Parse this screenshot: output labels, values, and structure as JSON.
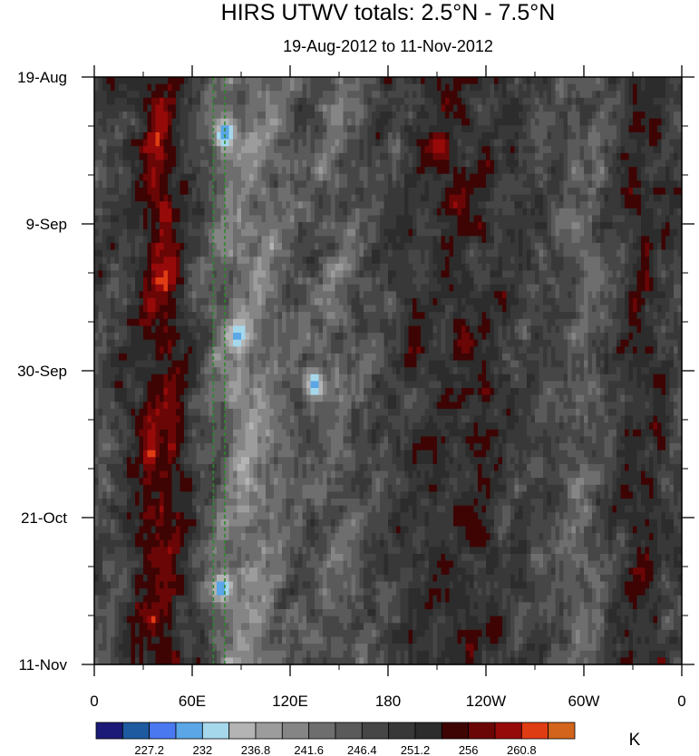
{
  "chart_data": {
    "type": "heatmap",
    "title": "HIRS UTWV totals: 2.5°N - 7.5°N",
    "subtitle": "19-Aug-2012 to 11-Nov-2012",
    "x_tick_labels": [
      "0",
      "60E",
      "120E",
      "180",
      "120W",
      "60W",
      "0"
    ],
    "x_ticks_deg_east": [
      0,
      60,
      120,
      180,
      240,
      300,
      360
    ],
    "xlim_deg_east": [
      0,
      360
    ],
    "y_tick_labels": [
      "19-Aug",
      "9-Sep",
      "30-Sep",
      "21-Oct",
      "11-Nov"
    ],
    "y_ticks": [
      "2012-08-19",
      "2012-09-09",
      "2012-09-30",
      "2012-10-21",
      "2012-11-11"
    ],
    "ylim": [
      "2012-08-19",
      "2012-11-11"
    ],
    "y_axis_reversed": true,
    "units": "K",
    "colorbar": {
      "levels": [
        224.8,
        227.2,
        229.6,
        232,
        234.4,
        236.8,
        239.2,
        241.6,
        244,
        246.4,
        248.8,
        251.2,
        253.6,
        256,
        258.4,
        260.8,
        263.2
      ],
      "labels": [
        "227.2",
        "232",
        "236.8",
        "241.6",
        "246.4",
        "251.2",
        "256",
        "260.8"
      ],
      "colors": [
        "#1c1a78",
        "#1e5aa0",
        "#4a78f0",
        "#5aa6e6",
        "#a6d8ec",
        "#b4b4b4",
        "#9c9c9c",
        "#858585",
        "#6e6e6e",
        "#5a5a5a",
        "#464646",
        "#383838",
        "#2c2c2c",
        "#3e0404",
        "#6a0606",
        "#960a0a",
        "#e03c14",
        "#d2641c"
      ]
    },
    "reference_lines_deg_east": [
      73,
      80
    ],
    "reference_line_color": "#2a8a2a",
    "field_grid": {
      "nx": 144,
      "ny": 85
    },
    "field_bands": [
      {
        "lon_deg_east": 40,
        "half_width_deg": 16,
        "strength": -14
      },
      {
        "lon_deg_east": 95,
        "half_width_deg": 22,
        "strength": 12
      },
      {
        "lon_deg_east": 150,
        "half_width_deg": 20,
        "strength": 5
      },
      {
        "lon_deg_east": 220,
        "half_width_deg": 35,
        "strength": -7
      },
      {
        "lon_deg_east": 298,
        "half_width_deg": 16,
        "strength": 5
      },
      {
        "lon_deg_east": 335,
        "half_width_deg": 16,
        "strength": -8
      }
    ],
    "field_blobs": [
      {
        "lon_deg_east": 210,
        "date": "2012-08-29",
        "value": 261
      },
      {
        "lon_deg_east": 222,
        "date": "2012-09-06",
        "value": 259
      },
      {
        "lon_deg_east": 227,
        "date": "2012-09-26",
        "value": 258
      },
      {
        "lon_deg_east": 240,
        "date": "2012-10-03",
        "value": 257
      },
      {
        "lon_deg_east": 47,
        "date": "2012-10-07",
        "value": 257
      },
      {
        "lon_deg_east": 236,
        "date": "2012-10-24",
        "value": 256
      },
      {
        "lon_deg_east": 246,
        "date": "2012-11-06",
        "value": 256
      },
      {
        "lon_deg_east": 230,
        "date": "2012-10-21",
        "value": 256
      },
      {
        "lon_deg_east": 80,
        "date": "2012-08-27",
        "value": 229
      },
      {
        "lon_deg_east": 135,
        "date": "2012-10-02",
        "value": 229
      },
      {
        "lon_deg_east": 88,
        "date": "2012-09-25",
        "value": 231
      },
      {
        "lon_deg_east": 78,
        "date": "2012-10-31",
        "value": 229
      }
    ]
  }
}
